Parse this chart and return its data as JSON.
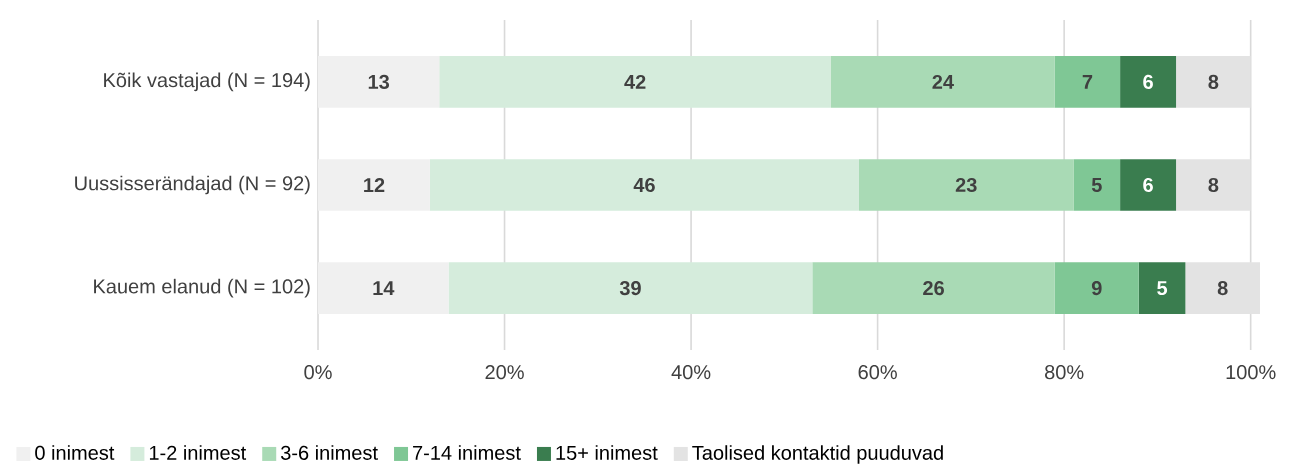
{
  "chart_data": {
    "type": "bar",
    "orientation": "horizontal",
    "stacked": true,
    "categories": [
      "Kõik vastajad (N = 194)",
      "Uussisserändajad (N = 92)",
      "Kauem elanud (N = 102)"
    ],
    "series": [
      {
        "name": "0 inimest",
        "color": "#f0f0f0",
        "values": [
          13,
          12,
          14
        ]
      },
      {
        "name": "1-2 inimest",
        "color": "#d5ecdc",
        "values": [
          42,
          46,
          39
        ]
      },
      {
        "name": "3-6 inimest",
        "color": "#a9dab5",
        "values": [
          24,
          23,
          26
        ]
      },
      {
        "name": "7-14 inimest",
        "color": "#7fc795",
        "values": [
          7,
          5,
          9
        ]
      },
      {
        "name": "15+ inimest",
        "color": "#3a7d4f",
        "values": [
          6,
          6,
          5
        ]
      },
      {
        "name": "Taolised kontaktid puuduvad",
        "color": "#e3e3e3",
        "values": [
          8,
          8,
          8
        ]
      }
    ],
    "xlim": [
      0,
      101
    ],
    "xticks": [
      {
        "value": 0,
        "label": "0%"
      },
      {
        "value": 20,
        "label": "20%"
      },
      {
        "value": 40,
        "label": "40%"
      },
      {
        "value": 60,
        "label": "60%"
      },
      {
        "value": 80,
        "label": "80%"
      },
      {
        "value": 100,
        "label": "100%"
      }
    ],
    "grid": "x",
    "legend": "bottom",
    "data_labels": true
  }
}
